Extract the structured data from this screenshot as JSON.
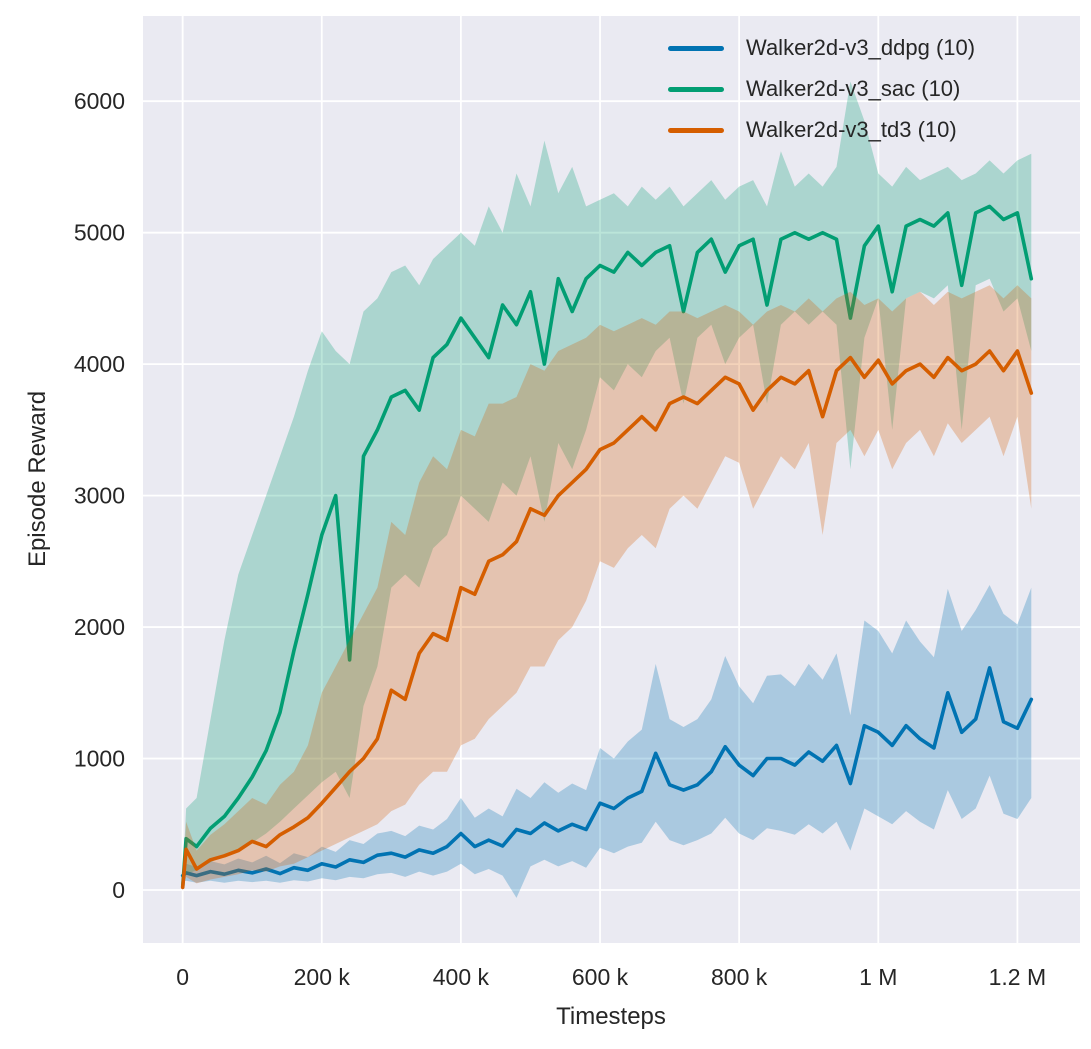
{
  "figure": {
    "background": "#ffffff",
    "plot_background": "#eaeaf2",
    "grid_color": "#ffffff",
    "text_color": "#262626",
    "band_opacity": 0.27
  },
  "chart_data": {
    "type": "line",
    "title": "",
    "xlabel": "Timesteps",
    "ylabel": "Episode Reward",
    "grid": true,
    "legend_position": "upper right",
    "legend_frame": false,
    "xlim": [
      -57000,
      1290000
    ],
    "ylim": [
      -403,
      6648
    ],
    "x_ticks": [
      {
        "value": 0,
        "label": "0"
      },
      {
        "value": 200000,
        "label": "200 k"
      },
      {
        "value": 400000,
        "label": "400 k"
      },
      {
        "value": 600000,
        "label": "600 k"
      },
      {
        "value": 800000,
        "label": "800 k"
      },
      {
        "value": 1000000,
        "label": "1 M"
      },
      {
        "value": 1200000,
        "label": "1.2 M"
      }
    ],
    "y_ticks": [
      {
        "value": 0,
        "label": "0"
      },
      {
        "value": 1000,
        "label": "1000"
      },
      {
        "value": 2000,
        "label": "2000"
      },
      {
        "value": 3000,
        "label": "3000"
      },
      {
        "value": 4000,
        "label": "4000"
      },
      {
        "value": 5000,
        "label": "5000"
      },
      {
        "value": 6000,
        "label": "6000"
      }
    ],
    "x": [
      0,
      5000,
      20000,
      40000,
      60000,
      80000,
      100000,
      120000,
      140000,
      160000,
      180000,
      200000,
      220000,
      240000,
      260000,
      280000,
      300000,
      320000,
      340000,
      360000,
      380000,
      400000,
      420000,
      440000,
      460000,
      480000,
      500000,
      520000,
      540000,
      560000,
      580000,
      600000,
      620000,
      640000,
      660000,
      680000,
      700000,
      720000,
      740000,
      760000,
      780000,
      800000,
      820000,
      840000,
      860000,
      880000,
      900000,
      920000,
      940000,
      960000,
      980000,
      1000000,
      1020000,
      1040000,
      1060000,
      1080000,
      1100000,
      1120000,
      1140000,
      1160000,
      1180000,
      1200000,
      1220000
    ],
    "series": [
      {
        "name": "Walker2d-v3_ddpg (10)",
        "color": "#0173b2",
        "mean": [
          110,
          130,
          110,
          140,
          120,
          150,
          130,
          160,
          125,
          170,
          150,
          200,
          175,
          230,
          210,
          265,
          280,
          250,
          305,
          280,
          330,
          430,
          330,
          380,
          335,
          460,
          430,
          510,
          450,
          500,
          460,
          660,
          620,
          700,
          750,
          1040,
          800,
          760,
          800,
          900,
          1090,
          950,
          870,
          1000,
          1000,
          950,
          1050,
          980,
          1100,
          810,
          1250,
          1200,
          1100,
          1250,
          1150,
          1080,
          1500,
          1200,
          1300,
          1690,
          1280,
          1230,
          1450
        ],
        "lower": [
          60,
          70,
          55,
          70,
          55,
          70,
          60,
          70,
          55,
          75,
          65,
          90,
          75,
          100,
          90,
          120,
          130,
          100,
          140,
          110,
          140,
          200,
          120,
          160,
          110,
          -60,
          180,
          230,
          180,
          220,
          170,
          320,
          280,
          330,
          360,
          520,
          380,
          340,
          380,
          430,
          550,
          430,
          380,
          470,
          450,
          420,
          500,
          430,
          520,
          300,
          620,
          560,
          500,
          600,
          520,
          460,
          760,
          540,
          620,
          870,
          580,
          540,
          700
        ],
        "upper": [
          170,
          200,
          175,
          220,
          195,
          240,
          210,
          260,
          205,
          280,
          250,
          330,
          290,
          380,
          350,
          430,
          450,
          410,
          490,
          460,
          540,
          700,
          550,
          620,
          560,
          770,
          700,
          820,
          740,
          810,
          760,
          1080,
          1000,
          1130,
          1220,
          1720,
          1300,
          1240,
          1300,
          1450,
          1780,
          1550,
          1420,
          1630,
          1640,
          1550,
          1720,
          1600,
          1800,
          1330,
          2050,
          1970,
          1800,
          2050,
          1890,
          1770,
          2290,
          1970,
          2130,
          2320,
          2100,
          2020,
          2300
        ]
      },
      {
        "name": "Walker2d-v3_sac (10)",
        "color": "#029e73",
        "mean": [
          25,
          390,
          330,
          470,
          560,
          700,
          860,
          1060,
          1350,
          1820,
          2250,
          2700,
          3000,
          1750,
          3300,
          3500,
          3750,
          3800,
          3650,
          4050,
          4150,
          4350,
          4200,
          4050,
          4450,
          4300,
          4550,
          4000,
          4650,
          4400,
          4650,
          4750,
          4700,
          4850,
          4750,
          4850,
          4900,
          4400,
          4850,
          4950,
          4700,
          4900,
          4950,
          4450,
          4950,
          5000,
          4950,
          5000,
          4950,
          4350,
          4900,
          5050,
          4550,
          5050,
          5100,
          5050,
          5150,
          4600,
          5150,
          5200,
          5100,
          5150,
          4650
        ],
        "lower": [
          0,
          120,
          150,
          210,
          260,
          310,
          360,
          430,
          520,
          620,
          720,
          820,
          900,
          700,
          1400,
          1700,
          2300,
          2400,
          2300,
          2600,
          2700,
          3000,
          2900,
          2800,
          3100,
          3000,
          3300,
          2800,
          3400,
          3200,
          3500,
          3900,
          3800,
          4000,
          3900,
          4100,
          4200,
          3700,
          4200,
          4300,
          4000,
          4200,
          4300,
          3700,
          4300,
          4400,
          4300,
          4400,
          4300,
          3200,
          4200,
          4500,
          3500,
          4500,
          4550,
          4500,
          4600,
          3500,
          4600,
          4650,
          4400,
          4500,
          4100
        ],
        "upper": [
          80,
          620,
          700,
          1300,
          1900,
          2400,
          2700,
          3000,
          3300,
          3600,
          3950,
          4250,
          4100,
          4000,
          4400,
          4500,
          4700,
          4750,
          4600,
          4800,
          4900,
          5000,
          4900,
          5200,
          5000,
          5450,
          5200,
          5700,
          5300,
          5500,
          5200,
          5250,
          5300,
          5200,
          5350,
          5250,
          5350,
          5200,
          5300,
          5400,
          5250,
          5350,
          5400,
          5200,
          5620,
          5350,
          5450,
          5350,
          5500,
          6150,
          5850,
          5450,
          5350,
          5500,
          5400,
          5450,
          5500,
          5400,
          5450,
          5550,
          5450,
          5550,
          5600
        ]
      },
      {
        "name": "Walker2d-v3_td3 (10)",
        "color": "#d55e00",
        "mean": [
          20,
          310,
          160,
          230,
          260,
          300,
          370,
          330,
          420,
          480,
          550,
          660,
          780,
          900,
          1000,
          1150,
          1520,
          1450,
          1800,
          1950,
          1900,
          2300,
          2250,
          2500,
          2550,
          2650,
          2900,
          2850,
          3000,
          3100,
          3200,
          3350,
          3400,
          3500,
          3600,
          3500,
          3700,
          3750,
          3700,
          3800,
          3900,
          3850,
          3650,
          3800,
          3900,
          3850,
          3950,
          3600,
          3950,
          4050,
          3900,
          4030,
          3850,
          3950,
          4000,
          3900,
          4050,
          3950,
          4000,
          4100,
          3950,
          4100,
          3780
        ],
        "lower": [
          0,
          100,
          50,
          80,
          100,
          120,
          150,
          140,
          180,
          200,
          250,
          300,
          350,
          400,
          450,
          500,
          600,
          650,
          800,
          900,
          900,
          1100,
          1150,
          1300,
          1400,
          1500,
          1700,
          1700,
          1900,
          2000,
          2200,
          2500,
          2450,
          2600,
          2700,
          2600,
          2900,
          3000,
          2900,
          3100,
          3300,
          3250,
          2900,
          3100,
          3300,
          3200,
          3400,
          2700,
          3400,
          3500,
          3300,
          3500,
          3200,
          3400,
          3500,
          3300,
          3550,
          3400,
          3500,
          3600,
          3300,
          3600,
          2900
        ],
        "upper": [
          60,
          520,
          300,
          420,
          500,
          600,
          700,
          650,
          800,
          900,
          1100,
          1500,
          1700,
          1900,
          2100,
          2300,
          2800,
          2700,
          3100,
          3300,
          3200,
          3500,
          3450,
          3700,
          3700,
          3750,
          4000,
          3950,
          4100,
          4150,
          4200,
          4300,
          4250,
          4300,
          4350,
          4300,
          4400,
          4400,
          4350,
          4400,
          4450,
          4400,
          4300,
          4400,
          4450,
          4400,
          4500,
          4400,
          4500,
          4550,
          4450,
          4500,
          4400,
          4500,
          4550,
          4450,
          4550,
          4500,
          4550,
          4600,
          4500,
          4600,
          4500
        ]
      }
    ]
  }
}
